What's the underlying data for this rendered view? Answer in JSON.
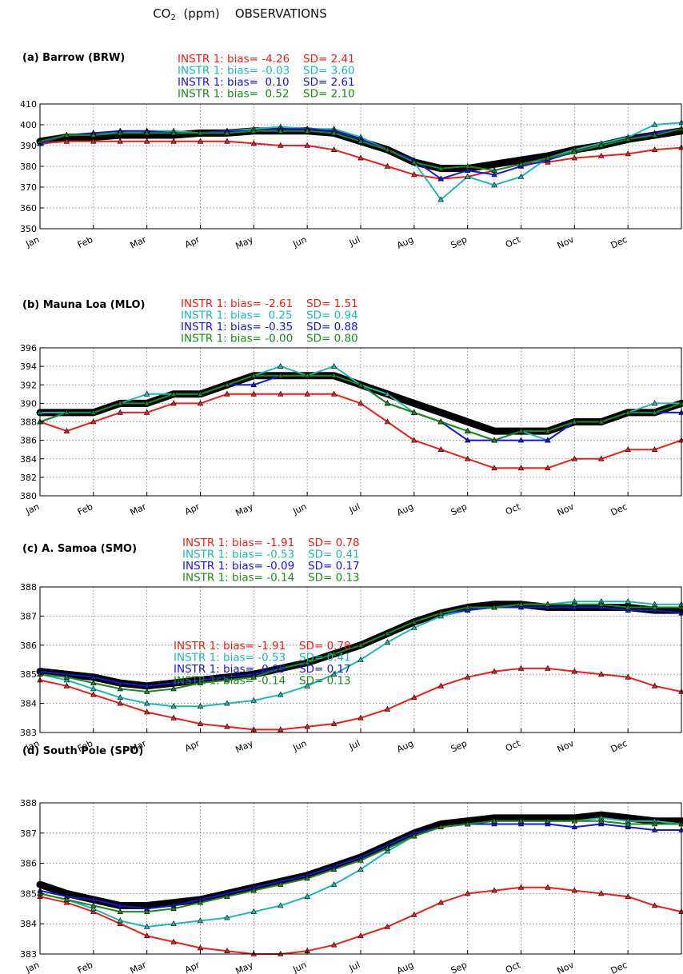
{
  "figure": {
    "title_prefix": "CO",
    "title_sub": "2",
    "title_suffix": "  (ppm)    OBSERVATIONS"
  },
  "colors": {
    "obs": "#000000",
    "red": "#e8201c",
    "cyan": "#1fb8b4",
    "blue": "#1616d8",
    "green": "#1a8a1a"
  },
  "chart_data": [
    {
      "type": "line",
      "title": "(a) Barrow (BRW)",
      "months": [
        "Jan",
        "Feb",
        "Mar",
        "Apr",
        "May",
        "Jun",
        "Jul",
        "Aug",
        "Sep",
        "Oct",
        "Nov",
        "Dec"
      ],
      "ylim": [
        350,
        410
      ],
      "yticks": [
        350,
        360,
        370,
        380,
        390,
        400,
        410
      ],
      "grid": true,
      "stats": [
        {
          "label": "INSTR 1: bias= -4.26",
          "sd": "SD= 2.41",
          "color": "red"
        },
        {
          "label": "INSTR 1: bias= -0.03",
          "sd": "SD= 3.60",
          "color": "cyan"
        },
        {
          "label": "INSTR 1: bias=  0.10",
          "sd": "SD= 2.61",
          "color": "blue"
        },
        {
          "label": "INSTR 1: bias=  0.52",
          "sd": "SD= 2.10",
          "color": "green"
        }
      ],
      "x": [
        0,
        0.5,
        1,
        1.5,
        2,
        2.5,
        3,
        3.5,
        4,
        4.5,
        5,
        5.5,
        6,
        6.5,
        7,
        7.5,
        8,
        8.5,
        9,
        9.5,
        10,
        10.5,
        11,
        11.5,
        12
      ],
      "series": [
        {
          "color": "obs",
          "values": [
            392,
            394,
            394,
            395,
            395,
            395,
            396,
            396,
            397,
            397,
            397,
            396,
            392,
            388,
            382,
            379,
            379,
            381,
            383,
            385,
            388,
            390,
            393,
            395,
            397
          ]
        },
        {
          "color": "red",
          "values": [
            391,
            392,
            392,
            392,
            392,
            392,
            392,
            392,
            391,
            390,
            390,
            388,
            384,
            380,
            376,
            374,
            375,
            378,
            381,
            382,
            384,
            385,
            386,
            388,
            389
          ]
        },
        {
          "color": "cyan",
          "values": [
            391,
            395,
            396,
            396,
            397,
            397,
            396,
            397,
            398,
            399,
            398,
            398,
            394,
            388,
            382,
            364,
            375,
            371,
            375,
            384,
            388,
            391,
            394,
            400,
            401
          ]
        },
        {
          "color": "blue",
          "values": [
            391,
            395,
            396,
            397,
            397,
            396,
            396,
            397,
            397,
            398,
            398,
            397,
            393,
            388,
            383,
            374,
            378,
            376,
            380,
            383,
            387,
            390,
            393,
            396,
            398
          ]
        },
        {
          "color": "green",
          "values": [
            392,
            395,
            395,
            396,
            396,
            396,
            396,
            396,
            397,
            397,
            397,
            396,
            392,
            388,
            382,
            379,
            380,
            378,
            381,
            384,
            387,
            390,
            393,
            395,
            398
          ]
        }
      ]
    },
    {
      "type": "line",
      "title": "(b) Mauna Loa (MLO)",
      "months": [
        "Jan",
        "Feb",
        "Mar",
        "Apr",
        "May",
        "Jun",
        "Jul",
        "Aug",
        "Sep",
        "Oct",
        "Nov",
        "Dec"
      ],
      "ylim": [
        380,
        396
      ],
      "yticks": [
        380,
        382,
        384,
        386,
        388,
        390,
        392,
        394,
        396
      ],
      "grid": true,
      "stats": [
        {
          "label": "INSTR 1: bias= -2.61",
          "sd": "SD= 1.51",
          "color": "red"
        },
        {
          "label": "INSTR 1: bias=  0.25",
          "sd": "SD= 0.94",
          "color": "cyan"
        },
        {
          "label": "INSTR 1: bias= -0.35",
          "sd": "SD= 0.88",
          "color": "blue"
        },
        {
          "label": "INSTR 1: bias= -0.00",
          "sd": "SD= 0.80",
          "color": "green"
        }
      ],
      "x": [
        0,
        0.5,
        1,
        1.5,
        2,
        2.5,
        3,
        3.5,
        4,
        4.5,
        5,
        5.5,
        6,
        6.5,
        7,
        7.5,
        8,
        8.5,
        9,
        9.5,
        10,
        10.5,
        11,
        11.5,
        12
      ],
      "series": [
        {
          "color": "obs",
          "values": [
            389,
            389,
            389,
            390,
            390,
            391,
            391,
            392,
            393,
            393,
            393,
            393,
            392,
            391,
            390,
            389,
            388,
            387,
            387,
            387,
            388,
            388,
            389,
            389,
            390
          ]
        },
        {
          "color": "red",
          "values": [
            388,
            387,
            388,
            389,
            389,
            390,
            390,
            391,
            391,
            391,
            391,
            391,
            390,
            388,
            386,
            385,
            384,
            383,
            383,
            383,
            384,
            384,
            385,
            385,
            386
          ]
        },
        {
          "color": "cyan",
          "values": [
            389,
            389,
            389,
            390,
            391,
            391,
            391,
            392,
            393,
            394,
            393,
            394,
            392,
            391,
            389,
            388,
            387,
            386,
            387,
            386,
            388,
            388,
            389,
            390,
            390
          ]
        },
        {
          "color": "blue",
          "values": [
            388,
            389,
            389,
            390,
            390,
            391,
            391,
            392,
            392,
            393,
            393,
            393,
            392,
            390,
            389,
            388,
            386,
            386,
            386,
            386,
            388,
            388,
            389,
            389,
            389
          ]
        },
        {
          "color": "green",
          "values": [
            388,
            389,
            389,
            390,
            390,
            391,
            391,
            392,
            393,
            393,
            393,
            393,
            392,
            390,
            389,
            388,
            387,
            386,
            387,
            387,
            388,
            388,
            389,
            389,
            390
          ]
        }
      ]
    },
    {
      "type": "line",
      "title": "(c) A. Samoa (SMO)",
      "months": [
        "Jan",
        "Feb",
        "Mar",
        "Apr",
        "May",
        "Jun",
        "Jul",
        "Aug",
        "Sep",
        "Oct",
        "Nov",
        "Dec"
      ],
      "ylim": [
        383,
        388
      ],
      "yticks": [
        383,
        384,
        385,
        386,
        387,
        388
      ],
      "grid": true,
      "stats": [
        {
          "label": "INSTR 1: bias= -1.91",
          "sd": "SD= 0.78",
          "color": "red"
        },
        {
          "label": "INSTR 1: bias= -0.53",
          "sd": "SD= 0.41",
          "color": "cyan"
        },
        {
          "label": "INSTR 1: bias= -0.09",
          "sd": "SD= 0.17",
          "color": "blue"
        },
        {
          "label": "INSTR 1: bias= -0.14",
          "sd": "SD= 0.13",
          "color": "green"
        }
      ],
      "x": [
        0,
        0.5,
        1,
        1.5,
        2,
        2.5,
        3,
        3.5,
        4,
        4.5,
        5,
        5.5,
        6,
        6.5,
        7,
        7.5,
        8,
        8.5,
        9,
        9.5,
        10,
        10.5,
        11,
        11.5,
        12
      ],
      "series": [
        {
          "color": "obs",
          "values": [
            385.1,
            385.0,
            384.9,
            384.7,
            384.6,
            384.7,
            384.8,
            384.9,
            385.0,
            385.2,
            385.4,
            385.7,
            386.0,
            386.4,
            386.8,
            387.1,
            387.3,
            387.4,
            387.4,
            387.3,
            387.3,
            387.3,
            387.3,
            387.2,
            387.2
          ]
        },
        {
          "color": "red",
          "values": [
            384.8,
            384.6,
            384.3,
            384.0,
            383.7,
            383.5,
            383.3,
            383.2,
            383.1,
            383.1,
            383.2,
            383.3,
            383.5,
            383.8,
            384.2,
            384.6,
            384.9,
            385.1,
            385.2,
            385.2,
            385.1,
            385.0,
            384.9,
            384.6,
            384.4
          ]
        },
        {
          "color": "cyan",
          "values": [
            385.0,
            384.8,
            384.5,
            384.2,
            384.0,
            383.9,
            383.9,
            384.0,
            384.1,
            384.3,
            384.6,
            385.0,
            385.5,
            386.1,
            386.6,
            387.0,
            387.2,
            387.3,
            387.4,
            387.4,
            387.5,
            387.5,
            387.5,
            387.4,
            387.4
          ]
        },
        {
          "color": "blue",
          "values": [
            385.1,
            385.0,
            384.9,
            384.7,
            384.6,
            384.7,
            384.8,
            384.9,
            385.0,
            385.2,
            385.4,
            385.7,
            386.0,
            386.4,
            386.8,
            387.1,
            387.2,
            387.3,
            387.3,
            387.3,
            387.3,
            387.3,
            387.2,
            387.2,
            387.1
          ]
        },
        {
          "color": "green",
          "values": [
            385.0,
            384.9,
            384.7,
            384.5,
            384.4,
            384.5,
            384.7,
            384.8,
            384.9,
            385.2,
            385.4,
            385.7,
            386.0,
            386.4,
            386.8,
            387.1,
            387.3,
            387.3,
            387.4,
            387.4,
            387.4,
            387.4,
            387.3,
            387.3,
            387.3
          ]
        }
      ]
    },
    {
      "type": "line",
      "title": "(d) South Pole (SPO)",
      "months": [
        "Jan",
        "Feb",
        "Mar",
        "Apr",
        "May",
        "Jun",
        "Jul",
        "Aug",
        "Sep",
        "Oct",
        "Nov",
        "Dec"
      ],
      "ylim": [
        383,
        388
      ],
      "yticks": [
        383,
        384,
        385,
        386,
        387,
        388
      ],
      "grid": true,
      "stats": [
        {
          "label": "INSTR 1: bias= -1.91",
          "sd": "SD= 0.78",
          "color": "red"
        },
        {
          "label": "INSTR 1: bias= -0.53",
          "sd": "SD= 0.41",
          "color": "cyan"
        },
        {
          "label": "INSTR 1: bias= -0.09",
          "sd": "SD= 0.17",
          "color": "blue"
        },
        {
          "label": "INSTR 1: bias= -0.14",
          "sd": "SD= 0.13",
          "color": "green"
        }
      ],
      "x": [
        0,
        0.5,
        1,
        1.5,
        2,
        2.5,
        3,
        3.5,
        4,
        4.5,
        5,
        5.5,
        6,
        6.5,
        7,
        7.5,
        8,
        8.5,
        9,
        9.5,
        10,
        10.5,
        11,
        11.5,
        12
      ],
      "series": [
        {
          "color": "obs",
          "values": [
            385.3,
            385.0,
            384.8,
            384.6,
            384.6,
            384.7,
            384.8,
            385.0,
            385.2,
            385.4,
            385.6,
            385.9,
            386.2,
            386.6,
            387.0,
            387.3,
            387.4,
            387.5,
            387.5,
            387.5,
            387.5,
            387.6,
            387.5,
            387.4,
            387.4
          ]
        },
        {
          "color": "red",
          "values": [
            384.9,
            384.7,
            384.4,
            384.0,
            383.6,
            383.4,
            383.2,
            383.1,
            383.0,
            383.0,
            383.1,
            383.3,
            383.6,
            383.9,
            384.3,
            384.7,
            385.0,
            385.1,
            385.2,
            385.2,
            385.1,
            385.0,
            384.9,
            384.6,
            384.4
          ]
        },
        {
          "color": "cyan",
          "values": [
            385.0,
            384.8,
            384.5,
            384.1,
            383.9,
            384.0,
            384.1,
            384.2,
            384.4,
            384.6,
            384.9,
            385.3,
            385.8,
            386.4,
            386.9,
            387.2,
            387.3,
            387.4,
            387.4,
            387.4,
            387.4,
            387.5,
            387.4,
            387.4,
            387.3
          ]
        },
        {
          "color": "blue",
          "values": [
            385.1,
            384.9,
            384.8,
            384.6,
            384.5,
            384.6,
            384.8,
            385.0,
            385.2,
            385.4,
            385.6,
            385.9,
            386.2,
            386.6,
            387.0,
            387.2,
            387.3,
            387.3,
            387.3,
            387.3,
            387.2,
            387.3,
            387.2,
            387.1,
            387.1
          ]
        },
        {
          "color": "green",
          "values": [
            385.0,
            384.8,
            384.6,
            384.4,
            384.4,
            384.5,
            384.7,
            384.9,
            385.1,
            385.3,
            385.5,
            385.8,
            386.1,
            386.5,
            386.9,
            387.2,
            387.3,
            387.4,
            387.4,
            387.4,
            387.4,
            387.4,
            387.3,
            387.3,
            387.3
          ]
        }
      ]
    }
  ]
}
